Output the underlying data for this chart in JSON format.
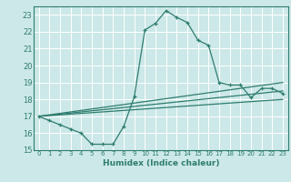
{
  "xlabel": "Humidex (Indice chaleur)",
  "bg_color": "#cce8e8",
  "line_color": "#2e7d6e",
  "grid_color": "#ffffff",
  "xlim": [
    -0.5,
    23.5
  ],
  "ylim": [
    15,
    23.5
  ],
  "xticks": [
    0,
    1,
    2,
    3,
    4,
    5,
    6,
    7,
    8,
    9,
    10,
    11,
    12,
    13,
    14,
    15,
    16,
    17,
    18,
    19,
    20,
    21,
    22,
    23
  ],
  "yticks": [
    15,
    16,
    17,
    18,
    19,
    20,
    21,
    22,
    23
  ],
  "line1_x": [
    0,
    1,
    2,
    3,
    4,
    5,
    6,
    7,
    8,
    9,
    10,
    11,
    12,
    13,
    14,
    15,
    16,
    17,
    18,
    19,
    20,
    21,
    22,
    23
  ],
  "line1_y": [
    17.0,
    16.75,
    16.5,
    16.25,
    16.0,
    15.35,
    15.35,
    15.35,
    16.4,
    18.15,
    22.1,
    22.5,
    23.25,
    22.85,
    22.55,
    21.5,
    21.2,
    19.0,
    18.85,
    18.85,
    18.1,
    18.65,
    18.65,
    18.35
  ],
  "line2_x": [
    0,
    23
  ],
  "line2_y": [
    17.0,
    19.0
  ],
  "line3_x": [
    0,
    23
  ],
  "line3_y": [
    17.0,
    18.5
  ],
  "line4_x": [
    0,
    23
  ],
  "line4_y": [
    17.0,
    18.0
  ]
}
